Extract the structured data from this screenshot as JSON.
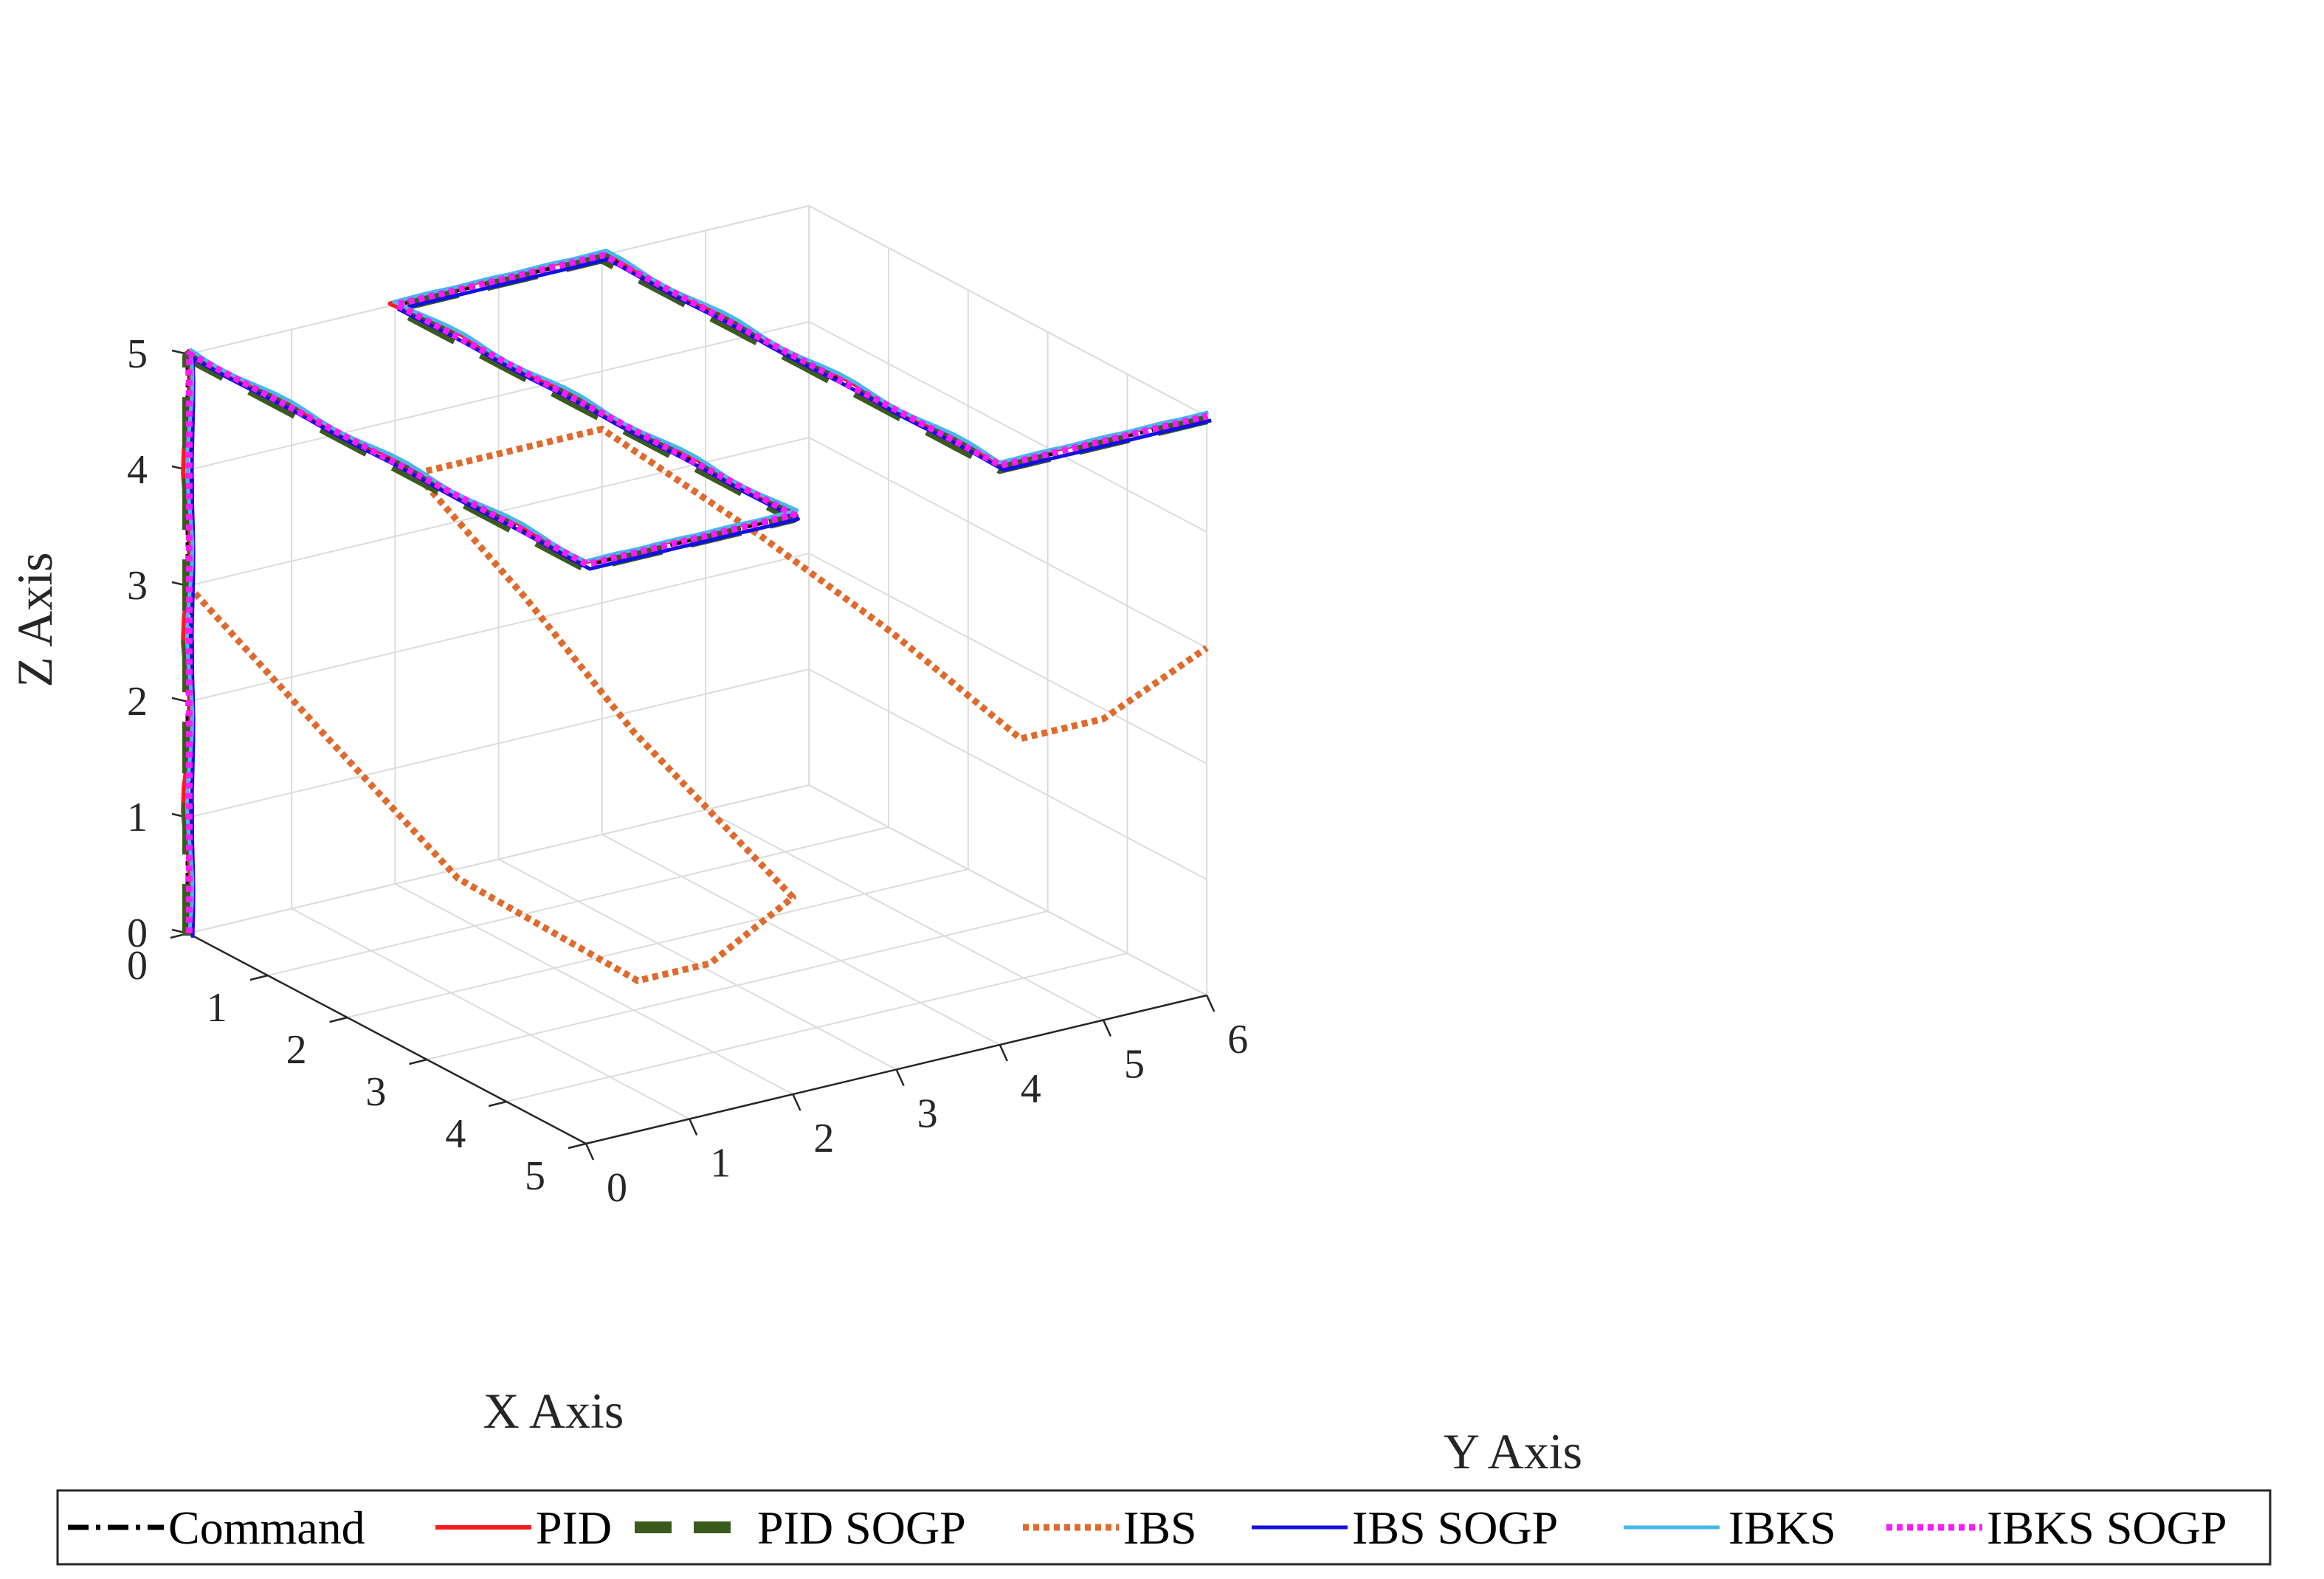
{
  "chart_data": {
    "type": "line3d",
    "title": "",
    "xlabel": "X Axis",
    "ylabel": "Y Axis",
    "zlabel": "Z Axis",
    "xlim": [
      0,
      5
    ],
    "ylim": [
      0,
      6
    ],
    "zlim": [
      0,
      5
    ],
    "xticks": [
      "0",
      "1",
      "2",
      "3",
      "4",
      "5"
    ],
    "yticks": [
      "0",
      "1",
      "2",
      "3",
      "4",
      "5",
      "6"
    ],
    "zticks": [
      "0",
      "1",
      "2",
      "3",
      "4",
      "5"
    ],
    "grid": true,
    "legend_position": "bottom",
    "command_path": [
      [
        0,
        0,
        0
      ],
      [
        0,
        0,
        5
      ],
      [
        5,
        0,
        5
      ],
      [
        5,
        2,
        5
      ],
      [
        0,
        2,
        5
      ],
      [
        0,
        4,
        5
      ],
      [
        5,
        4,
        5
      ],
      [
        5,
        6,
        5
      ]
    ],
    "ibs_path": [
      [
        0,
        0,
        3
      ],
      [
        1.5,
        0.1,
        2.3
      ],
      [
        3,
        0.3,
        1.5
      ],
      [
        5,
        0.5,
        1.3
      ],
      [
        5,
        1.2,
        1.3
      ],
      [
        5,
        2,
        1.7
      ],
      [
        3,
        2,
        2.4
      ],
      [
        1.5,
        2.1,
        3
      ],
      [
        0,
        2.2,
        3.5
      ],
      [
        0,
        4,
        3.5
      ],
      [
        2,
        4,
        3.3
      ],
      [
        3.5,
        4.1,
        3
      ],
      [
        5,
        4.2,
        2.6
      ],
      [
        5,
        5,
        2.6
      ],
      [
        5,
        6,
        3
      ]
    ],
    "series": [
      {
        "name": "Command",
        "color": "#000000",
        "dash": "dashdot",
        "width": 7,
        "jitter": 0,
        "shift": [
          0,
          0,
          0
        ]
      },
      {
        "name": "PID",
        "color": "#ff1a1a",
        "dash": "solid",
        "width": 6,
        "jitter": 0.05,
        "shift": [
          0.05,
          -0.05,
          0.05
        ]
      },
      {
        "name": "PID SOGP",
        "color": "#3b5a1e",
        "dash": "thickdash",
        "width": 16,
        "jitter": 0,
        "shift": [
          0,
          0,
          -0.02
        ]
      },
      {
        "name": "IBS",
        "color": "#e06a2c",
        "dash": "dotted",
        "width": 9,
        "jitter": 0,
        "shift": [
          0,
          0,
          0
        ]
      },
      {
        "name": "IBS SOGP",
        "color": "#1010e0",
        "dash": "solid",
        "width": 5,
        "jitter": 0.01,
        "shift": [
          0.03,
          0.02,
          -0.03
        ]
      },
      {
        "name": "IBKS",
        "color": "#45b8ea",
        "dash": "solid",
        "width": 5,
        "jitter": 0.035,
        "shift": [
          -0.02,
          0.03,
          0.02
        ]
      },
      {
        "name": "IBKS SOGP",
        "color": "#ff1aff",
        "dash": "dotted",
        "width": 9,
        "jitter": 0,
        "shift": [
          0,
          0.01,
          0
        ]
      }
    ]
  }
}
